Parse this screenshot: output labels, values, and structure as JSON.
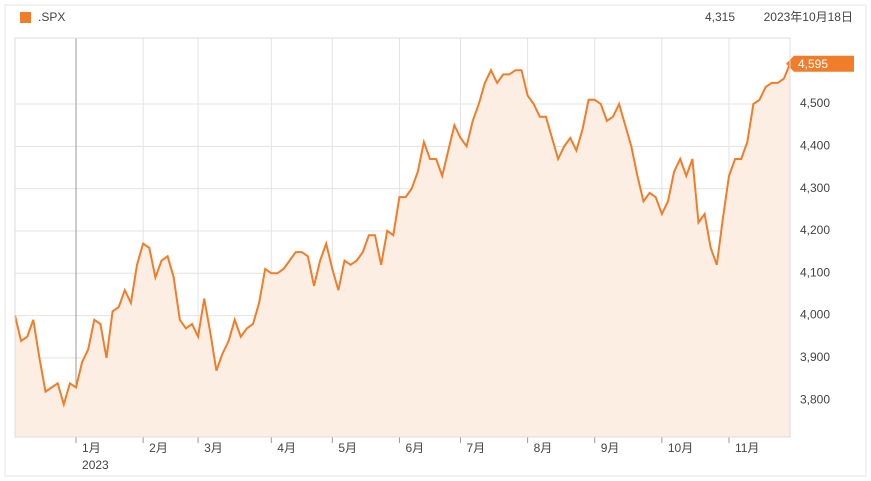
{
  "chart_data": {
    "type": "line",
    "series": [
      {
        "name": ".SPX",
        "color": "#f07d2a",
        "fill": "#fdeee4",
        "values": [
          4000,
          3940,
          3950,
          3990,
          3900,
          3820,
          3830,
          3840,
          3790,
          3840,
          3830,
          3890,
          3920,
          3990,
          3980,
          3900,
          4010,
          4020,
          4060,
          4030,
          4120,
          4170,
          4160,
          4090,
          4130,
          4140,
          4090,
          3990,
          3970,
          3980,
          3950,
          4040,
          3960,
          3870,
          3910,
          3940,
          3990,
          3950,
          3970,
          3980,
          4030,
          4110,
          4100,
          4100,
          4110,
          4130,
          4150,
          4150,
          4140,
          4070,
          4130,
          4170,
          4110,
          4060,
          4130,
          4120,
          4130,
          4150,
          4190,
          4190,
          4120,
          4200,
          4190,
          4280,
          4280,
          4300,
          4340,
          4410,
          4370,
          4370,
          4330,
          4390,
          4450,
          4420,
          4400,
          4460,
          4500,
          4550,
          4580,
          4550,
          4570,
          4570,
          4580,
          4580,
          4520,
          4500,
          4470,
          4470,
          4420,
          4370,
          4400,
          4420,
          4390,
          4440,
          4510,
          4510,
          4500,
          4460,
          4470,
          4500,
          4450,
          4400,
          4330,
          4270,
          4290,
          4280,
          4240,
          4270,
          4340,
          4370,
          4330,
          4370,
          4220,
          4240,
          4160,
          4120,
          4230,
          4330,
          4370,
          4370,
          4410,
          4500,
          4510,
          4540,
          4550,
          4550,
          4560,
          4595
        ],
        "value_labels": [
          null,
          null,
          null,
          null,
          null,
          null,
          null,
          null,
          null,
          null,
          null,
          null,
          null,
          null,
          null,
          null,
          null,
          null,
          null,
          null,
          null,
          null,
          null,
          null,
          null,
          null,
          null,
          null,
          null,
          null,
          null,
          null,
          null,
          null,
          null,
          null,
          null,
          null,
          null,
          null,
          null,
          null,
          null,
          null,
          null,
          null,
          null,
          null,
          null,
          null,
          null,
          null,
          null,
          null,
          null,
          null,
          null,
          null,
          null,
          null,
          null,
          null,
          null,
          null,
          null,
          null,
          null,
          null,
          null,
          null,
          null,
          null,
          null,
          null,
          null,
          null,
          null,
          null,
          null,
          null,
          null,
          null,
          null,
          null,
          null,
          null,
          null,
          null,
          null,
          null,
          null,
          null,
          null,
          null,
          null,
          null,
          null,
          null,
          null,
          null,
          null,
          null,
          null,
          null,
          null,
          null,
          null,
          null,
          null,
          null,
          null,
          null,
          null,
          null,
          null,
          null,
          null,
          null,
          null,
          null,
          null,
          null,
          null,
          null,
          null,
          null,
          null,
          "4,595"
        ]
      }
    ],
    "categories": [
      null,
      null,
      null,
      null,
      null,
      null,
      null,
      null,
      null,
      null,
      "1月",
      null,
      null,
      null,
      null,
      null,
      null,
      null,
      null,
      null,
      null,
      "2月",
      null,
      null,
      null,
      null,
      null,
      null,
      null,
      null,
      "3月",
      null,
      null,
      null,
      null,
      null,
      null,
      null,
      null,
      null,
      null,
      null,
      "4月",
      null,
      null,
      null,
      null,
      null,
      null,
      null,
      null,
      null,
      "5月",
      null,
      null,
      null,
      null,
      null,
      null,
      null,
      null,
      null,
      null,
      "6月",
      null,
      null,
      null,
      null,
      null,
      null,
      null,
      null,
      null,
      "7月",
      null,
      null,
      null,
      null,
      null,
      null,
      null,
      null,
      null,
      null,
      "8月",
      null,
      null,
      null,
      null,
      null,
      null,
      null,
      null,
      null,
      null,
      "9月",
      null,
      null,
      null,
      null,
      null,
      null,
      null,
      null,
      null,
      null,
      "10月",
      null,
      null,
      null,
      null,
      null,
      null,
      null,
      null,
      null,
      null,
      "11月",
      null,
      null,
      null,
      null,
      null,
      null,
      null,
      null,
      null,
      null
    ],
    "year_label": "2023",
    "header_value": "4,315",
    "header_date": "2023年10月18日",
    "ylim": [
      3713,
      4656
    ],
    "yticks": [
      {
        "value": 3800,
        "label": "3,800"
      },
      {
        "value": 3900,
        "label": "3,900"
      },
      {
        "value": 4000,
        "label": "4,000"
      },
      {
        "value": 4100,
        "label": "4,100"
      },
      {
        "value": 4200,
        "label": "4,200"
      },
      {
        "value": 4300,
        "label": "4,300"
      },
      {
        "value": 4400,
        "label": "4,400"
      },
      {
        "value": 4500,
        "label": "4,500"
      }
    ],
    "grid": true
  }
}
